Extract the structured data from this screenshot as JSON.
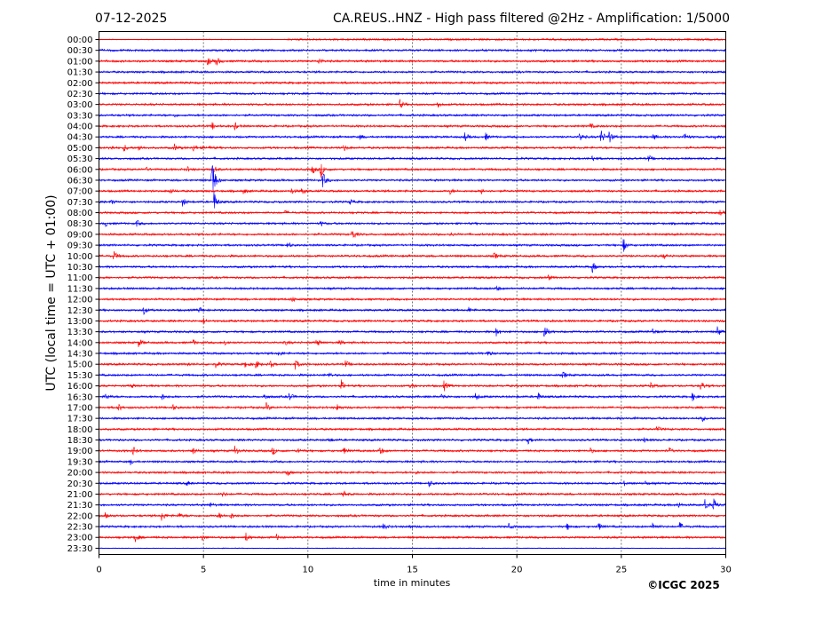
{
  "chart_data": {
    "type": "line",
    "title_left": "07-12-2025",
    "title": "CA.REUS..HNZ - High pass filtered @2Hz - Amplification: 1/5000",
    "xlabel": "time in minutes",
    "ylabel": "UTC (local time = UTC + 01:00)",
    "xlim": [
      0,
      30
    ],
    "x_ticks": [
      "0",
      "5",
      "10",
      "15",
      "20",
      "25",
      "30"
    ],
    "grid": "vertical dotted at every 5 minutes",
    "copyright": "©ICGC 2025",
    "colors": {
      "hour": "#ff0000",
      "half_hour": "#0000ff"
    },
    "rows": [
      "00:00",
      "00:30",
      "01:00",
      "01:30",
      "02:00",
      "02:30",
      "03:00",
      "03:30",
      "04:00",
      "04:30",
      "05:00",
      "05:30",
      "06:00",
      "06:30",
      "07:00",
      "07:30",
      "08:00",
      "08:30",
      "09:00",
      "09:30",
      "10:00",
      "10:30",
      "11:00",
      "11:30",
      "12:00",
      "12:30",
      "13:00",
      "13:30",
      "14:00",
      "14:30",
      "15:00",
      "15:30",
      "16:00",
      "16:30",
      "17:00",
      "17:30",
      "18:00",
      "18:30",
      "19:00",
      "19:30",
      "20:00",
      "20:30",
      "21:00",
      "21:30",
      "22:00",
      "22:30",
      "23:00",
      "23:30"
    ],
    "events": {
      "2": [
        [
          5.2,
          5
        ],
        [
          5.6,
          6
        ],
        [
          10.5,
          4
        ]
      ],
      "6": [
        [
          14.4,
          5
        ],
        [
          16.2,
          4
        ]
      ],
      "7": [
        [
          3.6,
          2
        ]
      ],
      "8": [
        [
          5.4,
          4
        ],
        [
          6.5,
          4
        ],
        [
          23.5,
          3
        ]
      ],
      "9": [
        [
          12.5,
          3
        ],
        [
          17.5,
          5
        ],
        [
          18.5,
          4
        ],
        [
          23,
          6
        ],
        [
          24,
          10
        ],
        [
          24.4,
          8
        ],
        [
          26.5,
          4
        ],
        [
          28,
          5
        ],
        [
          29.5,
          3
        ]
      ],
      "10": [
        [
          0.5,
          4
        ],
        [
          1.2,
          4
        ],
        [
          1.9,
          4
        ],
        [
          3.6,
          4
        ],
        [
          4.5,
          5
        ],
        [
          5.2,
          4
        ],
        [
          11.7,
          4
        ]
      ],
      "11": [
        [
          23.6,
          4
        ],
        [
          26.3,
          4
        ]
      ],
      "12": [
        [
          2.2,
          3
        ],
        [
          4.2,
          3
        ],
        [
          5.5,
          5
        ],
        [
          10.2,
          6
        ],
        [
          10.6,
          10
        ]
      ],
      "13": [
        [
          5.4,
          30
        ],
        [
          10.7,
          10
        ]
      ],
      "14": [
        [
          3.4,
          3
        ],
        [
          6.9,
          3
        ],
        [
          9.2,
          3
        ],
        [
          9.7,
          4
        ],
        [
          16.8,
          3
        ],
        [
          18.3,
          3
        ]
      ],
      "15": [
        [
          0.6,
          3
        ],
        [
          4,
          5
        ],
        [
          5.5,
          12
        ],
        [
          12,
          3
        ]
      ],
      "16": [
        [
          8.9,
          2
        ],
        [
          29.7,
          3
        ]
      ],
      "17": [
        [
          0.3,
          3
        ],
        [
          1.8,
          4
        ],
        [
          10.6,
          3
        ]
      ],
      "18": [
        [
          12.1,
          8
        ],
        [
          16.8,
          2
        ]
      ],
      "19": [
        [
          9,
          4
        ],
        [
          25.1,
          8
        ]
      ],
      "20": [
        [
          0.7,
          6
        ],
        [
          18.9,
          4
        ],
        [
          27,
          3
        ]
      ],
      "21": [
        [
          23.6,
          7
        ]
      ],
      "22": [
        [
          21.5,
          3
        ]
      ],
      "23": [
        [
          19,
          4
        ]
      ],
      "24": [
        [
          9.2,
          4
        ]
      ],
      "25": [
        [
          2.1,
          6
        ],
        [
          4.8,
          4
        ],
        [
          17.7,
          3
        ]
      ],
      "26": [
        [
          5,
          3
        ]
      ],
      "27": [
        [
          19,
          5
        ],
        [
          21.3,
          10
        ],
        [
          26.5,
          4
        ],
        [
          29.6,
          6
        ]
      ],
      "28": [
        [
          1.9,
          5
        ],
        [
          4.5,
          3
        ],
        [
          6,
          4
        ],
        [
          8.9,
          3
        ],
        [
          10.4,
          5
        ],
        [
          11.5,
          3
        ]
      ],
      "29": [
        [
          8.6,
          3
        ],
        [
          18.6,
          3
        ]
      ],
      "30": [
        [
          4.2,
          3
        ],
        [
          5.6,
          4
        ],
        [
          7,
          4
        ],
        [
          7.5,
          5
        ],
        [
          8.2,
          4
        ],
        [
          9.4,
          6
        ],
        [
          11.8,
          4
        ]
      ],
      "31": [
        [
          11,
          3
        ],
        [
          22.2,
          4
        ]
      ],
      "32": [
        [
          1.5,
          3
        ],
        [
          11.6,
          6
        ],
        [
          14.9,
          3
        ],
        [
          16.5,
          6
        ],
        [
          26.4,
          4
        ],
        [
          28.8,
          6
        ]
      ],
      "33": [
        [
          0.3,
          4
        ],
        [
          3,
          4
        ],
        [
          7.9,
          4
        ],
        [
          9.1,
          5
        ],
        [
          16.4,
          4
        ],
        [
          18,
          5
        ],
        [
          21,
          5
        ],
        [
          28.4,
          5
        ]
      ],
      "34": [
        [
          0.9,
          5
        ],
        [
          3.5,
          4
        ],
        [
          8,
          5
        ],
        [
          11.4,
          4
        ]
      ],
      "35": [
        [
          25.6,
          2
        ],
        [
          28.8,
          5
        ]
      ],
      "36": [
        [
          26.7,
          3
        ]
      ],
      "37": [
        [
          11,
          3
        ],
        [
          20.5,
          5
        ],
        [
          26.1,
          3
        ]
      ],
      "38": [
        [
          1.6,
          6
        ],
        [
          4.5,
          4
        ],
        [
          6.5,
          6
        ],
        [
          8.3,
          5
        ],
        [
          9.5,
          4
        ],
        [
          11.7,
          4
        ],
        [
          13.4,
          7
        ],
        [
          23.5,
          3
        ],
        [
          27.3,
          3
        ]
      ],
      "39": [
        [
          1.5,
          3
        ]
      ],
      "40": [
        [
          9,
          4
        ],
        [
          15.1,
          2
        ]
      ],
      "41": [
        [
          4.2,
          3
        ],
        [
          15.8,
          4
        ],
        [
          25.1,
          3
        ],
        [
          26.1,
          3
        ]
      ],
      "42": [
        [
          5.9,
          3
        ],
        [
          11.7,
          4
        ]
      ],
      "43": [
        [
          5.3,
          3
        ],
        [
          27.7,
          4
        ],
        [
          29,
          6
        ],
        [
          29.4,
          8
        ]
      ],
      "44": [
        [
          0.3,
          3
        ],
        [
          3,
          6
        ],
        [
          3.8,
          4
        ],
        [
          5.7,
          4
        ],
        [
          6.3,
          4
        ]
      ],
      "45": [
        [
          13.6,
          4
        ],
        [
          14.8,
          3
        ],
        [
          19.6,
          3
        ],
        [
          22.4,
          4
        ],
        [
          23.9,
          5
        ],
        [
          26.5,
          5
        ],
        [
          27.8,
          5
        ]
      ],
      "46": [
        [
          1.7,
          6
        ],
        [
          4.9,
          4
        ],
        [
          7,
          6
        ],
        [
          8.5,
          3
        ]
      ],
      "47": []
    }
  }
}
